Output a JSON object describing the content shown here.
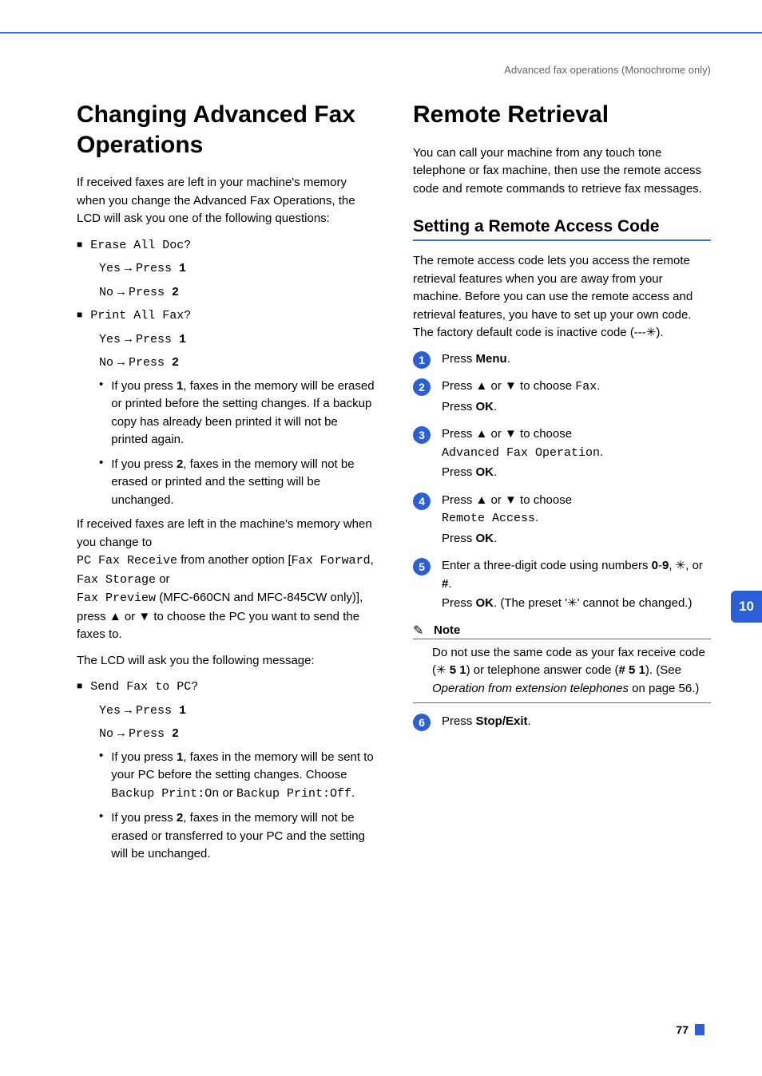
{
  "header": {
    "breadcrumb": "Advanced fax operations (Monochrome only)"
  },
  "sidebar": {
    "chapter": "10"
  },
  "footer": {
    "page": "77"
  },
  "left": {
    "title": "Changing Advanced Fax Operations",
    "intro": "If received faxes are left in your machine's memory when you change the Advanced Fax Operations, the LCD will ask you one of the following questions:",
    "q1": "Erase All Doc?",
    "yes": "Yes",
    "arrow": "→",
    "press": "Press ",
    "one": "1",
    "no": "No",
    "two": "2",
    "q2": "Print All Fax?",
    "b1": "If you press ",
    "b1b": "1",
    "b1c": ", faxes in the memory will be erased or printed before the setting changes. If a backup copy has already been printed it will not be printed again.",
    "b2": "If you press ",
    "b2b": "2",
    "b2c": ", faxes in the memory will not be erased or printed and the setting will be unchanged.",
    "para2a": "If received faxes are left in the machine's memory when you change to ",
    "para2_mono1": "PC Fax Receive",
    "para2b": " from another option [",
    "para2_mono2": "Fax Forward",
    "para2c": ", ",
    "para2_mono3": "Fax Storage",
    "para2d": " or ",
    "para2_mono4": "Fax Preview",
    "para2e": " (MFC-660CN and MFC-845CW only)], press ▲ or ▼ to choose the PC you want to send the faxes to.",
    "para3": "The LCD will ask you the following message:",
    "q3": "Send Fax to PC?",
    "b3a": "If you press ",
    "b3b": "1",
    "b3c": ", faxes in the memory will be sent to your PC before the setting changes. Choose ",
    "b3_mono1": "Backup Print:On",
    "b3d": " or ",
    "b3_mono2": "Backup Print:Off",
    "b3e": ".",
    "b4a": "If you press ",
    "b4b": "2",
    "b4c": ", faxes in the memory will not be erased or transferred to your PC and the setting will be unchanged."
  },
  "right": {
    "title": "Remote Retrieval",
    "intro": "You can call your machine from any touch tone telephone or fax machine, then use the remote access code and remote commands to retrieve fax messages.",
    "h2": "Setting a Remote Access Code",
    "p1": "The remote access code lets you access the remote retrieval features when you are away from your machine. Before you can use the remote access and retrieval features, you have to set up your own code. The factory default code is inactive code (---✳).",
    "steps": {
      "s1": "Press ",
      "s1b": "Menu",
      "s1c": ".",
      "s2a": "Press ▲ or ▼ to choose ",
      "s2_mono": "Fax",
      "s2b": ".",
      "s2c": "Press ",
      "s2d": "OK",
      "s2e": ".",
      "s3a": "Press ▲ or ▼ to choose ",
      "s3_mono": "Advanced Fax Operation",
      "s3b": ".",
      "s3c": "Press ",
      "s3d": "OK",
      "s3e": ".",
      "s4a": "Press ▲ or ▼ to choose ",
      "s4_mono": "Remote Access",
      "s4b": ".",
      "s4c": "Press ",
      "s4d": "OK",
      "s4e": ".",
      "s5a": "Enter a three-digit code using numbers ",
      "s5b": "0",
      "s5c": "-",
      "s5d": "9",
      "s5e": ", ✳, or ",
      "s5f": "#",
      "s5g": ".",
      "s5h": "Press ",
      "s5i": "OK",
      "s5j": ". (The preset '✳' cannot be changed.)",
      "s6a": "Press ",
      "s6b": "Stop/Exit",
      "s6c": "."
    },
    "note": {
      "title": "Note",
      "body_a": "Do not use the same code as your fax receive code (✳ ",
      "body_b": "5 1",
      "body_c": ") or telephone answer code (",
      "body_d": "# 5 1",
      "body_e": "). (See ",
      "body_link": "Operation from extension telephones",
      "body_f": " on page 56.)"
    }
  }
}
